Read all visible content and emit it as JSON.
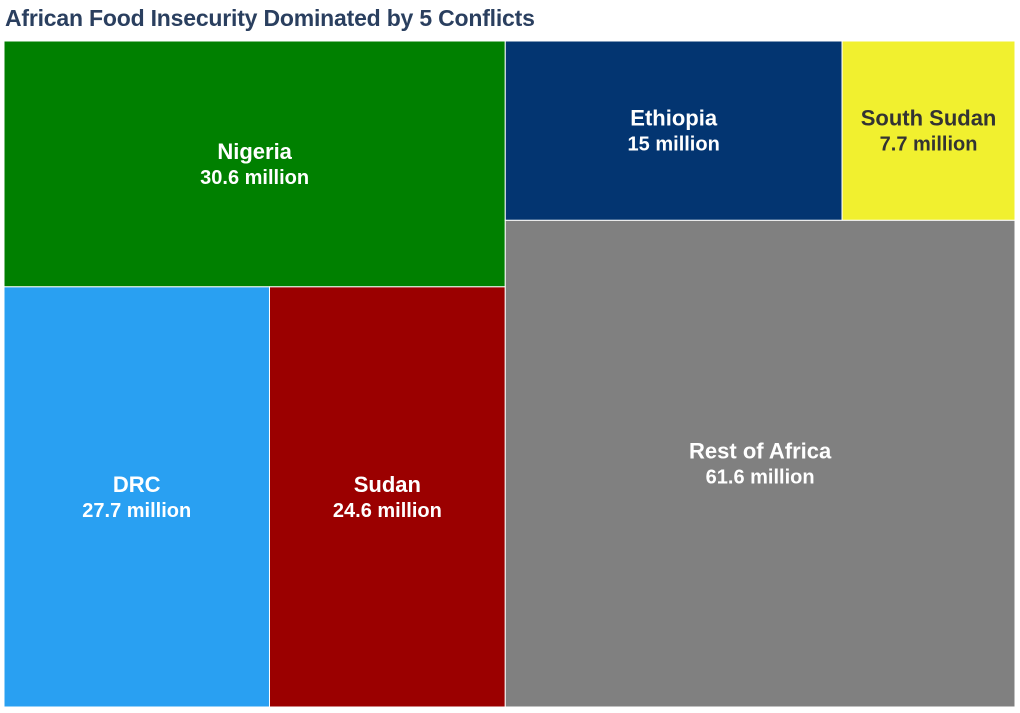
{
  "chart_data": {
    "type": "treemap",
    "title": "African Food Insecurity Dominated by 5 Conflicts",
    "unit": "million",
    "items": [
      {
        "label": "Nigeria",
        "value": 30.6,
        "value_label": "30.6 million",
        "color": "#008000",
        "text_color": "#ffffff"
      },
      {
        "label": "DRC",
        "value": 27.7,
        "value_label": "27.7 million",
        "color": "#29a0f2",
        "text_color": "#ffffff"
      },
      {
        "label": "Sudan",
        "value": 24.6,
        "value_label": "24.6 million",
        "color": "#9b0000",
        "text_color": "#ffffff"
      },
      {
        "label": "Ethiopia",
        "value": 15,
        "value_label": "15 million",
        "color": "#033571",
        "text_color": "#ffffff"
      },
      {
        "label": "South Sudan",
        "value": 7.7,
        "value_label": "7.7 million",
        "color": "#f1f02f",
        "text_color": "#333333"
      },
      {
        "label": "Rest of Africa",
        "value": 61.6,
        "value_label": "61.6 million",
        "color": "#808080",
        "text_color": "#ffffff"
      }
    ]
  }
}
